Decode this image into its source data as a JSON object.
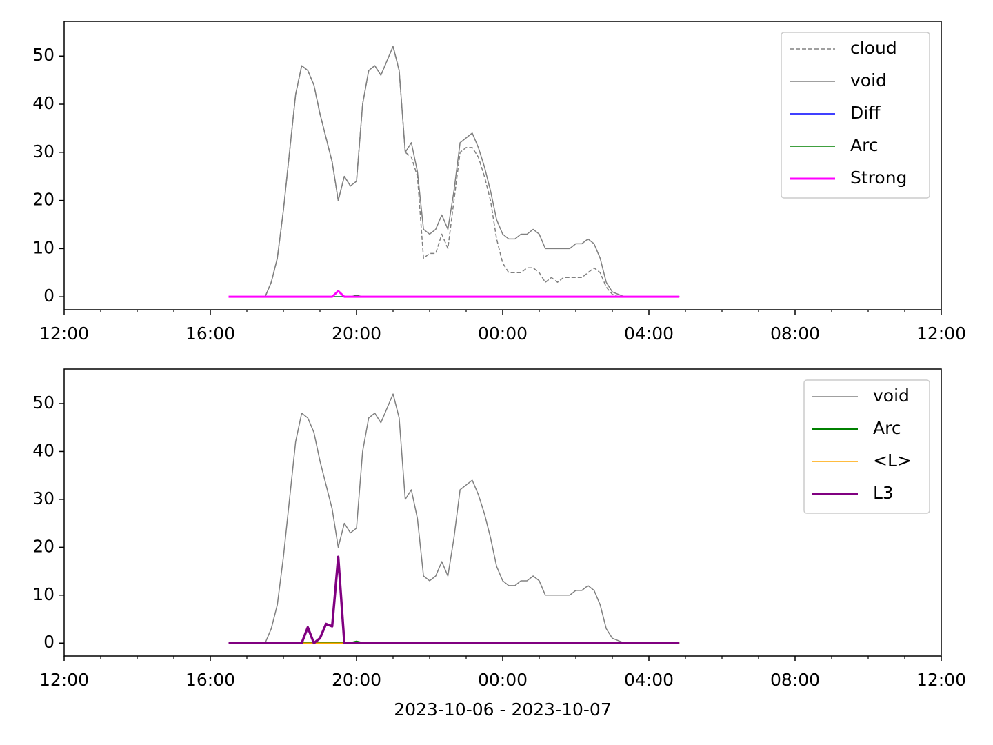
{
  "chart_data": [
    {
      "type": "line",
      "legend": "upper right",
      "x": [
        "2023-10-06 16:30",
        "2023-10-06 16:40",
        "2023-10-06 16:50",
        "2023-10-06 17:00",
        "2023-10-06 17:10",
        "2023-10-06 17:20",
        "2023-10-06 17:30",
        "2023-10-06 17:40",
        "2023-10-06 17:50",
        "2023-10-06 18:00",
        "2023-10-06 18:10",
        "2023-10-06 18:20",
        "2023-10-06 18:30",
        "2023-10-06 18:40",
        "2023-10-06 18:50",
        "2023-10-06 19:00",
        "2023-10-06 19:10",
        "2023-10-06 19:20",
        "2023-10-06 19:30",
        "2023-10-06 19:40",
        "2023-10-06 19:50",
        "2023-10-06 20:00",
        "2023-10-06 20:10",
        "2023-10-06 20:20",
        "2023-10-06 20:30",
        "2023-10-06 20:40",
        "2023-10-06 20:50",
        "2023-10-06 21:00",
        "2023-10-06 21:10",
        "2023-10-06 21:20",
        "2023-10-06 21:30",
        "2023-10-06 21:40",
        "2023-10-06 21:50",
        "2023-10-06 22:00",
        "2023-10-06 22:10",
        "2023-10-06 22:20",
        "2023-10-06 22:30",
        "2023-10-06 22:40",
        "2023-10-06 22:50",
        "2023-10-06 23:00",
        "2023-10-06 23:10",
        "2023-10-06 23:20",
        "2023-10-06 23:30",
        "2023-10-06 23:40",
        "2023-10-06 23:50",
        "2023-10-07 00:00",
        "2023-10-07 00:10",
        "2023-10-07 00:20",
        "2023-10-07 00:30",
        "2023-10-07 00:40",
        "2023-10-07 00:50",
        "2023-10-07 01:00",
        "2023-10-07 01:10",
        "2023-10-07 01:20",
        "2023-10-07 01:30",
        "2023-10-07 01:40",
        "2023-10-07 01:50",
        "2023-10-07 02:00",
        "2023-10-07 02:10",
        "2023-10-07 02:20",
        "2023-10-07 02:30",
        "2023-10-07 02:40",
        "2023-10-07 02:50",
        "2023-10-07 03:00",
        "2023-10-07 03:10",
        "2023-10-07 03:20",
        "2023-10-07 03:30",
        "2023-10-07 03:40",
        "2023-10-07 03:50",
        "2023-10-07 04:00",
        "2023-10-07 04:10",
        "2023-10-07 04:20",
        "2023-10-07 04:30",
        "2023-10-07 04:40",
        "2023-10-07 04:50"
      ],
      "series": [
        {
          "name": "cloud",
          "color": "#808080",
          "linestyle": "dashed",
          "linewidth": 1.5,
          "values": [
            0,
            0,
            0,
            0,
            0,
            0,
            0,
            3,
            8,
            18,
            30,
            42,
            48,
            47,
            44,
            38,
            33,
            28,
            20,
            25,
            23,
            24,
            40,
            47,
            48,
            46,
            49,
            52,
            47,
            30,
            29,
            25,
            8,
            9,
            9,
            13,
            10,
            20,
            30,
            31,
            31,
            29,
            25,
            20,
            12,
            7,
            5,
            5,
            5,
            6,
            6,
            5,
            3,
            4,
            3,
            4,
            4,
            4,
            4,
            5,
            6,
            5,
            2,
            0.5,
            0,
            0,
            0,
            0,
            0,
            0,
            0,
            0,
            0,
            0,
            0
          ]
        },
        {
          "name": "void",
          "color": "#808080",
          "linestyle": "solid",
          "linewidth": 1.5,
          "values": [
            0,
            0,
            0,
            0,
            0,
            0,
            0,
            3,
            8,
            18,
            30,
            42,
            48,
            47,
            44,
            38,
            33,
            28,
            20,
            25,
            23,
            24,
            40,
            47,
            48,
            46,
            49,
            52,
            47,
            30,
            32,
            26,
            14,
            13,
            14,
            17,
            14,
            22,
            32,
            33,
            34,
            31,
            27,
            22,
            16,
            13,
            12,
            12,
            13,
            13,
            14,
            13,
            10,
            10,
            10,
            10,
            10,
            11,
            11,
            12,
            11,
            8,
            3,
            1,
            0.5,
            0,
            0,
            0,
            0,
            0,
            0,
            0,
            0,
            0,
            0
          ]
        },
        {
          "name": "Diff",
          "color": "#0000ff",
          "linestyle": "solid",
          "linewidth": 1.5,
          "values": [
            0,
            0,
            0,
            0,
            0,
            0,
            0,
            0,
            0,
            0,
            0,
            0,
            0,
            0,
            0,
            0,
            0,
            0,
            0,
            0,
            0,
            0,
            0,
            0,
            0,
            0,
            0,
            0,
            0,
            0,
            0,
            0,
            0,
            0,
            0,
            0,
            0,
            0,
            0,
            0,
            0,
            0,
            0,
            0,
            0,
            0,
            0,
            0,
            0,
            0,
            0,
            0,
            0,
            0,
            0,
            0,
            0,
            0,
            0,
            0,
            0,
            0,
            0,
            0,
            0,
            0,
            0,
            0,
            0,
            0,
            0,
            0,
            0,
            0,
            0
          ]
        },
        {
          "name": "Arc",
          "color": "#008000",
          "linestyle": "solid",
          "linewidth": 1.5,
          "values": [
            0,
            0,
            0,
            0,
            0,
            0,
            0,
            0,
            0,
            0,
            0,
            0,
            0,
            0,
            0,
            0,
            0,
            0,
            0,
            0,
            0,
            0.3,
            0,
            0,
            0,
            0,
            0,
            0,
            0,
            0,
            0,
            0,
            0,
            0,
            0,
            0,
            0,
            0,
            0,
            0,
            0,
            0,
            0,
            0,
            0,
            0,
            0,
            0,
            0,
            0,
            0,
            0,
            0,
            0,
            0,
            0,
            0,
            0,
            0,
            0,
            0,
            0,
            0,
            0,
            0,
            0,
            0,
            0,
            0,
            0,
            0,
            0,
            0,
            0,
            0
          ]
        },
        {
          "name": "Strong",
          "color": "#ff00ff",
          "linestyle": "solid",
          "linewidth": 3,
          "values": [
            0,
            0,
            0,
            0,
            0,
            0,
            0,
            0,
            0,
            0,
            0,
            0,
            0,
            0,
            0,
            0,
            0,
            0,
            1.2,
            0,
            0,
            0,
            0,
            0,
            0,
            0,
            0,
            0,
            0,
            0,
            0,
            0,
            0,
            0,
            0,
            0,
            0,
            0,
            0,
            0,
            0,
            0,
            0,
            0,
            0,
            0,
            0,
            0,
            0,
            0,
            0,
            0,
            0,
            0,
            0,
            0,
            0,
            0,
            0,
            0,
            0,
            0,
            0,
            0,
            0,
            0,
            0,
            0,
            0,
            0,
            0,
            0,
            0,
            0,
            0
          ]
        }
      ],
      "xlim": [
        "2023-10-06 12:00",
        "2023-10-07 12:00"
      ],
      "xticks": [
        {
          "value": "2023-10-06 12:00",
          "label": "12:00"
        },
        {
          "value": "2023-10-06 16:00",
          "label": "16:00"
        },
        {
          "value": "2023-10-06 20:00",
          "label": "20:00"
        },
        {
          "value": "2023-10-07 00:00",
          "label": "00:00"
        },
        {
          "value": "2023-10-07 04:00",
          "label": "04:00"
        },
        {
          "value": "2023-10-07 08:00",
          "label": "08:00"
        },
        {
          "value": "2023-10-07 12:00",
          "label": "12:00"
        }
      ],
      "xminorticks": [
        "2023-10-06 13:00",
        "2023-10-06 14:00",
        "2023-10-06 15:00",
        "2023-10-06 17:00",
        "2023-10-06 18:00",
        "2023-10-06 19:00",
        "2023-10-06 21:00",
        "2023-10-06 22:00",
        "2023-10-06 23:00",
        "2023-10-07 01:00",
        "2023-10-07 02:00",
        "2023-10-07 03:00",
        "2023-10-07 05:00",
        "2023-10-07 06:00",
        "2023-10-07 07:00",
        "2023-10-07 09:00",
        "2023-10-07 10:00",
        "2023-10-07 11:00"
      ],
      "ylim": [
        -2.7,
        57.2
      ],
      "yticks": [
        0,
        10,
        20,
        30,
        40,
        50
      ]
    },
    {
      "type": "line",
      "legend": "upper right",
      "xlabel": "2023-10-06 - 2023-10-07",
      "x": [
        "2023-10-06 16:30",
        "2023-10-06 16:40",
        "2023-10-06 16:50",
        "2023-10-06 17:00",
        "2023-10-06 17:10",
        "2023-10-06 17:20",
        "2023-10-06 17:30",
        "2023-10-06 17:40",
        "2023-10-06 17:50",
        "2023-10-06 18:00",
        "2023-10-06 18:10",
        "2023-10-06 18:20",
        "2023-10-06 18:30",
        "2023-10-06 18:40",
        "2023-10-06 18:50",
        "2023-10-06 19:00",
        "2023-10-06 19:10",
        "2023-10-06 19:20",
        "2023-10-06 19:30",
        "2023-10-06 19:40",
        "2023-10-06 19:50",
        "2023-10-06 20:00",
        "2023-10-06 20:10",
        "2023-10-06 20:20",
        "2023-10-06 20:30",
        "2023-10-06 20:40",
        "2023-10-06 20:50",
        "2023-10-06 21:00",
        "2023-10-06 21:10",
        "2023-10-06 21:20",
        "2023-10-06 21:30",
        "2023-10-06 21:40",
        "2023-10-06 21:50",
        "2023-10-06 22:00",
        "2023-10-06 22:10",
        "2023-10-06 22:20",
        "2023-10-06 22:30",
        "2023-10-06 22:40",
        "2023-10-06 22:50",
        "2023-10-06 23:00",
        "2023-10-06 23:10",
        "2023-10-06 23:20",
        "2023-10-06 23:30",
        "2023-10-06 23:40",
        "2023-10-06 23:50",
        "2023-10-07 00:00",
        "2023-10-07 00:10",
        "2023-10-07 00:20",
        "2023-10-07 00:30",
        "2023-10-07 00:40",
        "2023-10-07 00:50",
        "2023-10-07 01:00",
        "2023-10-07 01:10",
        "2023-10-07 01:20",
        "2023-10-07 01:30",
        "2023-10-07 01:40",
        "2023-10-07 01:50",
        "2023-10-07 02:00",
        "2023-10-07 02:10",
        "2023-10-07 02:20",
        "2023-10-07 02:30",
        "2023-10-07 02:40",
        "2023-10-07 02:50",
        "2023-10-07 03:00",
        "2023-10-07 03:10",
        "2023-10-07 03:20",
        "2023-10-07 03:30",
        "2023-10-07 03:40",
        "2023-10-07 03:50",
        "2023-10-07 04:00",
        "2023-10-07 04:10",
        "2023-10-07 04:20",
        "2023-10-07 04:30",
        "2023-10-07 04:40",
        "2023-10-07 04:50"
      ],
      "series": [
        {
          "name": "void",
          "color": "#808080",
          "linestyle": "solid",
          "linewidth": 1.5,
          "values": [
            0,
            0,
            0,
            0,
            0,
            0,
            0,
            3,
            8,
            18,
            30,
            42,
            48,
            47,
            44,
            38,
            33,
            28,
            20,
            25,
            23,
            24,
            40,
            47,
            48,
            46,
            49,
            52,
            47,
            30,
            32,
            26,
            14,
            13,
            14,
            17,
            14,
            22,
            32,
            33,
            34,
            31,
            27,
            22,
            16,
            13,
            12,
            12,
            13,
            13,
            14,
            13,
            10,
            10,
            10,
            10,
            10,
            11,
            11,
            12,
            11,
            8,
            3,
            1,
            0.5,
            0,
            0,
            0,
            0,
            0,
            0,
            0,
            0,
            0,
            0
          ]
        },
        {
          "name": "Arc",
          "color": "#008000",
          "linestyle": "solid",
          "linewidth": 3,
          "values": [
            0,
            0,
            0,
            0,
            0,
            0,
            0,
            0,
            0,
            0,
            0,
            0,
            0,
            0,
            0,
            0,
            0,
            0,
            0,
            0,
            0,
            0.3,
            0,
            0,
            0,
            0,
            0,
            0,
            0,
            0,
            0,
            0,
            0,
            0,
            0,
            0,
            0,
            0,
            0,
            0,
            0,
            0,
            0,
            0,
            0,
            0,
            0,
            0,
            0,
            0,
            0,
            0,
            0,
            0,
            0,
            0,
            0,
            0,
            0,
            0,
            0,
            0,
            0,
            0,
            0,
            0,
            0,
            0,
            0,
            0,
            0,
            0,
            0,
            0,
            0
          ]
        },
        {
          "name": "<L>",
          "color": "#ffa500",
          "linestyle": "solid",
          "linewidth": 1.5,
          "values": [
            0,
            0,
            0,
            0,
            0,
            0,
            0,
            0,
            0,
            0,
            0,
            0,
            0,
            0,
            0,
            0,
            0,
            0,
            0,
            0,
            0,
            0,
            0,
            0,
            0,
            0,
            0,
            0,
            0,
            0,
            0,
            0,
            0,
            0,
            0,
            0,
            0,
            0,
            0,
            0,
            0,
            0,
            0,
            0,
            0,
            0,
            0,
            0,
            0,
            0,
            0,
            0,
            0,
            0,
            0,
            0,
            0,
            0,
            0,
            0,
            0,
            0,
            0,
            0,
            0,
            0,
            0,
            0,
            0,
            0,
            0,
            0,
            0,
            0,
            0
          ]
        },
        {
          "name": "L3",
          "color": "#800080",
          "linestyle": "solid",
          "linewidth": 3.5,
          "values": [
            0,
            0,
            0,
            0,
            0,
            0,
            0,
            0,
            0,
            0,
            0,
            0,
            0,
            3.3,
            0,
            1,
            4,
            3.5,
            18,
            0,
            0,
            0,
            0,
            0,
            0,
            0,
            0,
            0,
            0,
            0,
            0,
            0,
            0,
            0,
            0,
            0,
            0,
            0,
            0,
            0,
            0,
            0,
            0,
            0,
            0,
            0,
            0,
            0,
            0,
            0,
            0,
            0,
            0,
            0,
            0,
            0,
            0,
            0,
            0,
            0,
            0,
            0,
            0,
            0,
            0,
            0,
            0,
            0,
            0,
            0,
            0,
            0,
            0,
            0,
            0
          ]
        }
      ],
      "xlim": [
        "2023-10-06 12:00",
        "2023-10-07 12:00"
      ],
      "xticks": [
        {
          "value": "2023-10-06 12:00",
          "label": "12:00"
        },
        {
          "value": "2023-10-06 16:00",
          "label": "16:00"
        },
        {
          "value": "2023-10-06 20:00",
          "label": "20:00"
        },
        {
          "value": "2023-10-07 00:00",
          "label": "00:00"
        },
        {
          "value": "2023-10-07 04:00",
          "label": "04:00"
        },
        {
          "value": "2023-10-07 08:00",
          "label": "08:00"
        },
        {
          "value": "2023-10-07 12:00",
          "label": "12:00"
        }
      ],
      "xminorticks": [
        "2023-10-06 13:00",
        "2023-10-06 14:00",
        "2023-10-06 15:00",
        "2023-10-06 17:00",
        "2023-10-06 18:00",
        "2023-10-06 19:00",
        "2023-10-06 21:00",
        "2023-10-06 22:00",
        "2023-10-06 23:00",
        "2023-10-07 01:00",
        "2023-10-07 02:00",
        "2023-10-07 03:00",
        "2023-10-07 05:00",
        "2023-10-07 06:00",
        "2023-10-07 07:00",
        "2023-10-07 09:00",
        "2023-10-07 10:00",
        "2023-10-07 11:00"
      ],
      "ylim": [
        -2.7,
        57.2
      ],
      "yticks": [
        0,
        10,
        20,
        30,
        40,
        50
      ]
    }
  ]
}
